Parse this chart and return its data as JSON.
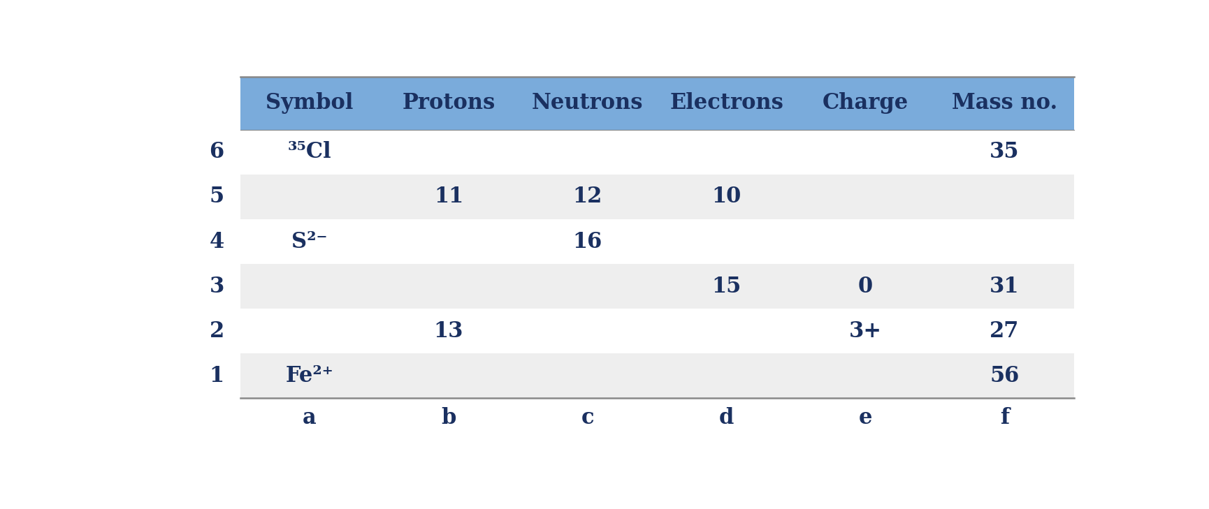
{
  "header": [
    "Symbol",
    "Protons",
    "Neutrons",
    "Electrons",
    "Charge",
    "Mass no."
  ],
  "row_labels": [
    "6",
    "5",
    "4",
    "3",
    "2",
    "1"
  ],
  "col_labels": [
    "a",
    "b",
    "c",
    "d",
    "e",
    "f"
  ],
  "rows": [
    [
      "³⁵Cl",
      "",
      "",
      "",
      "",
      "35"
    ],
    [
      "",
      "11",
      "12",
      "10",
      "",
      ""
    ],
    [
      "S²⁻",
      "",
      "16",
      "",
      "",
      ""
    ],
    [
      "",
      "",
      "",
      "15",
      "0",
      "31"
    ],
    [
      "",
      "13",
      "",
      "",
      "3+",
      "27"
    ],
    [
      "Fe²⁺",
      "",
      "",
      "",
      "",
      "56"
    ]
  ],
  "header_bg": "#7aabdb",
  "odd_row_bg": "#eeeeee",
  "even_row_bg": "#ffffff",
  "header_text_color": "#1a3060",
  "body_text_color": "#1a3060",
  "label_text_color": "#1a3060",
  "line_color": "#888888",
  "figsize": [
    17.3,
    7.29
  ],
  "dpi": 100,
  "font_size": 22
}
